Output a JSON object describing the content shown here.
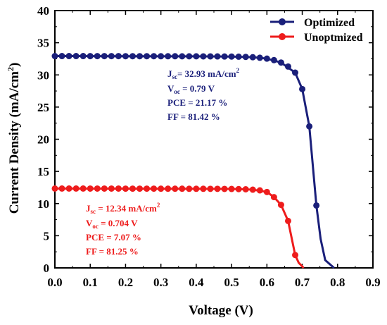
{
  "chart_data": {
    "type": "line",
    "xlabel": "Voltage (V)",
    "ylabel_main": "Current Density (mA/cm",
    "ylabel_sup": "2",
    "ylabel_tail": ")",
    "xlim": [
      0.0,
      0.9
    ],
    "ylim": [
      0,
      40
    ],
    "x_ticks": [
      0.0,
      0.1,
      0.2,
      0.3,
      0.4,
      0.5,
      0.6,
      0.7,
      0.8,
      0.9
    ],
    "x_tick_labels": [
      "0.0",
      "0.1",
      "0.2",
      "0.3",
      "0.4",
      "0.5",
      "0.6",
      "0.7",
      "0.8",
      "0.9"
    ],
    "y_ticks": [
      0,
      5,
      10,
      15,
      20,
      25,
      30,
      35,
      40
    ],
    "y_tick_labels": [
      "0",
      "5",
      "10",
      "15",
      "20",
      "25",
      "30",
      "35",
      "40"
    ],
    "grid": false,
    "legend_position": "top-right",
    "series": [
      {
        "name": "Optimized",
        "color": "#1a1f7a",
        "markers": [
          [
            0.0,
            32.93
          ],
          [
            0.02,
            32.93
          ],
          [
            0.04,
            32.93
          ],
          [
            0.06,
            32.93
          ],
          [
            0.08,
            32.93
          ],
          [
            0.1,
            32.92
          ],
          [
            0.12,
            32.92
          ],
          [
            0.14,
            32.92
          ],
          [
            0.16,
            32.92
          ],
          [
            0.18,
            32.92
          ],
          [
            0.2,
            32.91
          ],
          [
            0.22,
            32.91
          ],
          [
            0.24,
            32.91
          ],
          [
            0.26,
            32.91
          ],
          [
            0.28,
            32.91
          ],
          [
            0.3,
            32.9
          ],
          [
            0.32,
            32.9
          ],
          [
            0.34,
            32.9
          ],
          [
            0.36,
            32.89
          ],
          [
            0.38,
            32.89
          ],
          [
            0.4,
            32.89
          ],
          [
            0.42,
            32.88
          ],
          [
            0.44,
            32.88
          ],
          [
            0.46,
            32.87
          ],
          [
            0.48,
            32.86
          ],
          [
            0.5,
            32.85
          ],
          [
            0.52,
            32.83
          ],
          [
            0.54,
            32.8
          ],
          [
            0.56,
            32.75
          ],
          [
            0.58,
            32.67
          ],
          [
            0.6,
            32.53
          ],
          [
            0.62,
            32.3
          ],
          [
            0.64,
            31.92
          ],
          [
            0.66,
            31.3
          ],
          [
            0.68,
            30.35
          ],
          [
            0.7,
            27.8
          ],
          [
            0.72,
            22.0
          ],
          [
            0.74,
            9.7
          ]
        ],
        "curve": [
          [
            0.0,
            32.93
          ],
          [
            0.2,
            32.91
          ],
          [
            0.4,
            32.89
          ],
          [
            0.5,
            32.85
          ],
          [
            0.56,
            32.75
          ],
          [
            0.6,
            32.53
          ],
          [
            0.64,
            31.92
          ],
          [
            0.68,
            30.35
          ],
          [
            0.7,
            27.8
          ],
          [
            0.72,
            22.0
          ],
          [
            0.74,
            9.7
          ],
          [
            0.752,
            4.5
          ],
          [
            0.765,
            1.2
          ],
          [
            0.79,
            0.0
          ]
        ]
      },
      {
        "name": "Unoptmized",
        "color": "#ee1c1c",
        "markers": [
          [
            0.0,
            12.34
          ],
          [
            0.02,
            12.34
          ],
          [
            0.04,
            12.34
          ],
          [
            0.06,
            12.34
          ],
          [
            0.08,
            12.34
          ],
          [
            0.1,
            12.33
          ],
          [
            0.12,
            12.33
          ],
          [
            0.14,
            12.33
          ],
          [
            0.16,
            12.33
          ],
          [
            0.18,
            12.33
          ],
          [
            0.2,
            12.32
          ],
          [
            0.22,
            12.32
          ],
          [
            0.24,
            12.32
          ],
          [
            0.26,
            12.32
          ],
          [
            0.28,
            12.32
          ],
          [
            0.3,
            12.31
          ],
          [
            0.32,
            12.31
          ],
          [
            0.34,
            12.31
          ],
          [
            0.36,
            12.31
          ],
          [
            0.38,
            12.3
          ],
          [
            0.4,
            12.3
          ],
          [
            0.42,
            12.3
          ],
          [
            0.44,
            12.29
          ],
          [
            0.46,
            12.29
          ],
          [
            0.48,
            12.28
          ],
          [
            0.5,
            12.27
          ],
          [
            0.52,
            12.25
          ],
          [
            0.54,
            12.22
          ],
          [
            0.56,
            12.16
          ],
          [
            0.58,
            12.05
          ],
          [
            0.6,
            11.8
          ],
          [
            0.62,
            11.0
          ],
          [
            0.64,
            9.8
          ],
          [
            0.66,
            7.3
          ],
          [
            0.68,
            2.0
          ]
        ],
        "curve": [
          [
            0.0,
            12.34
          ],
          [
            0.2,
            12.32
          ],
          [
            0.4,
            12.3
          ],
          [
            0.5,
            12.27
          ],
          [
            0.56,
            12.16
          ],
          [
            0.6,
            11.8
          ],
          [
            0.62,
            11.0
          ],
          [
            0.64,
            9.8
          ],
          [
            0.66,
            7.3
          ],
          [
            0.68,
            2.0
          ],
          [
            0.69,
            0.8
          ],
          [
            0.704,
            0.0
          ]
        ]
      }
    ],
    "annotations": [
      {
        "id": "optimized",
        "color": "#1a1f7a",
        "lines": [
          {
            "base": "J",
            "sub": "sc",
            "text": "= 32.93 mA/cm",
            "sup": "2"
          },
          {
            "base": "V",
            "sub": "oc",
            "text": " = 0.79 V",
            "sup": ""
          },
          {
            "base": "PCE = 21.17 %",
            "sub": "",
            "text": "",
            "sup": ""
          },
          {
            "base": "FF = 81.42 %",
            "sub": "",
            "text": "",
            "sup": ""
          }
        ]
      },
      {
        "id": "unoptimized",
        "color": "#ee1c1c",
        "lines": [
          {
            "base": "J",
            "sub": "sc",
            "text": " = 12.34 mA/cm",
            "sup": "2"
          },
          {
            "base": "V",
            "sub": "oc",
            "text": " = 0.704 V",
            "sup": ""
          },
          {
            "base": "PCE = 7.07 %",
            "sub": "",
            "text": "",
            "sup": ""
          },
          {
            "base": "FF = 81.25 %",
            "sub": "",
            "text": "",
            "sup": ""
          }
        ]
      }
    ]
  }
}
